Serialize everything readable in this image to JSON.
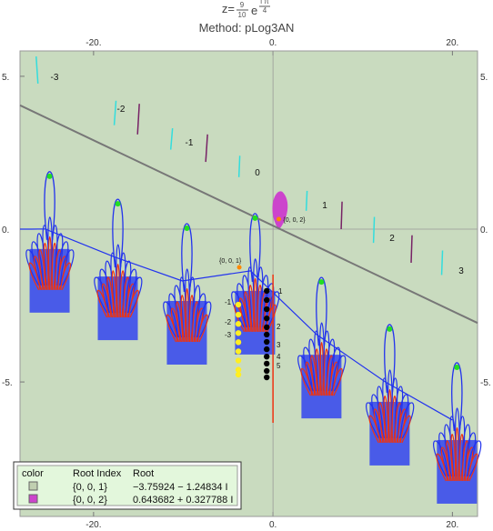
{
  "chart_data": {
    "type": "complex-plot",
    "title": {
      "lhs": "z=",
      "num": "9",
      "den": "10",
      "base": "e",
      "exp_num": "i π",
      "exp_den": "4"
    },
    "subtitle": "Method: pLog3AN",
    "background": "#c9dbbf",
    "xlim": [
      -28.2,
      22.8
    ],
    "ylim": [
      -9.4,
      5.83
    ],
    "xticks": [
      {
        "value": -20,
        "label": "-20."
      },
      {
        "value": 0,
        "label": "0."
      },
      {
        "value": 20,
        "label": "20."
      }
    ],
    "yticks": [
      {
        "value": 5,
        "label": "5."
      },
      {
        "value": 0,
        "label": "0."
      },
      {
        "value": -5,
        "label": "-5."
      }
    ],
    "line": {
      "color": "#777777",
      "x": [
        -28.2,
        22.8
      ],
      "y": [
        4.05,
        -3.07
      ]
    },
    "saddle_points": {
      "color": "#22dd22",
      "x": [
        -24.9,
        -17.3,
        -9.6,
        -2.0,
        5.4,
        13.0,
        20.5
      ],
      "y": [
        1.73,
        0.83,
        0.03,
        0.36,
        -1.73,
        -3.27,
        -4.52
      ]
    },
    "cuts": [
      {
        "color": "#33dddd",
        "segments": [
          [
            -26.4,
            5.65,
            -26.2,
            4.76
          ],
          [
            -17.5,
            4.2,
            -17.7,
            3.4
          ],
          [
            -11.2,
            3.3,
            -11.4,
            2.6
          ],
          [
            -3.7,
            2.4,
            -3.8,
            1.7
          ],
          [
            3.8,
            1.25,
            3.7,
            0.6
          ],
          [
            11.3,
            0.4,
            11.2,
            -0.45
          ],
          [
            18.9,
            -0.7,
            18.8,
            -1.5
          ]
        ]
      },
      {
        "color": "#772266",
        "segments": [
          [
            -14.9,
            4.1,
            -15.1,
            3.1
          ],
          [
            -7.3,
            3.1,
            -7.5,
            2.2
          ],
          [
            7.7,
            0.9,
            7.6,
            0.0
          ],
          [
            15.5,
            -0.2,
            15.4,
            -1.1
          ]
        ]
      }
    ],
    "point_sets": [
      {
        "color": "#000000",
        "x": [
          -0.7,
          -0.7,
          -0.7,
          -0.7,
          -0.7,
          -0.7,
          -0.7,
          -0.7,
          -0.7,
          -0.7,
          -0.7,
          -0.7
        ],
        "y": [
          -2.02,
          -2.32,
          -2.62,
          -2.92,
          -3.21,
          -3.45,
          -3.69,
          -3.93,
          -4.17,
          -4.4,
          -4.64,
          -4.85
        ]
      },
      {
        "color": "#ffee22",
        "x": [
          -3.86,
          -3.86,
          -3.86,
          -3.86,
          -3.86,
          -3.86,
          -3.86,
          -3.86,
          -3.86
        ],
        "y": [
          -2.47,
          -2.8,
          -3.1,
          -3.4,
          -3.7,
          -4.0,
          -4.3,
          -4.6,
          -4.76
        ]
      }
    ],
    "branch_labels": [
      "-3",
      "-2",
      "-1",
      "0",
      "1",
      "2",
      "3"
    ],
    "index_labels": [
      "-1",
      "-2",
      "-3",
      "1",
      "2",
      "3",
      "4",
      "5"
    ],
    "legend": {
      "headers": [
        "color",
        "Root Index",
        "Root"
      ]
    },
    "roots": [
      {
        "index": "{0, 0, 1}",
        "label": "−3.75924 − 1.24834 I",
        "color": "#c0cfb0",
        "x": -3.75924,
        "y": -1.24834
      },
      {
        "index": "{0, 0, 2}",
        "label": "0.643682 + 0.327788 I",
        "color": "#cc44cc",
        "x": 0.643682,
        "y": 0.327788
      }
    ]
  }
}
